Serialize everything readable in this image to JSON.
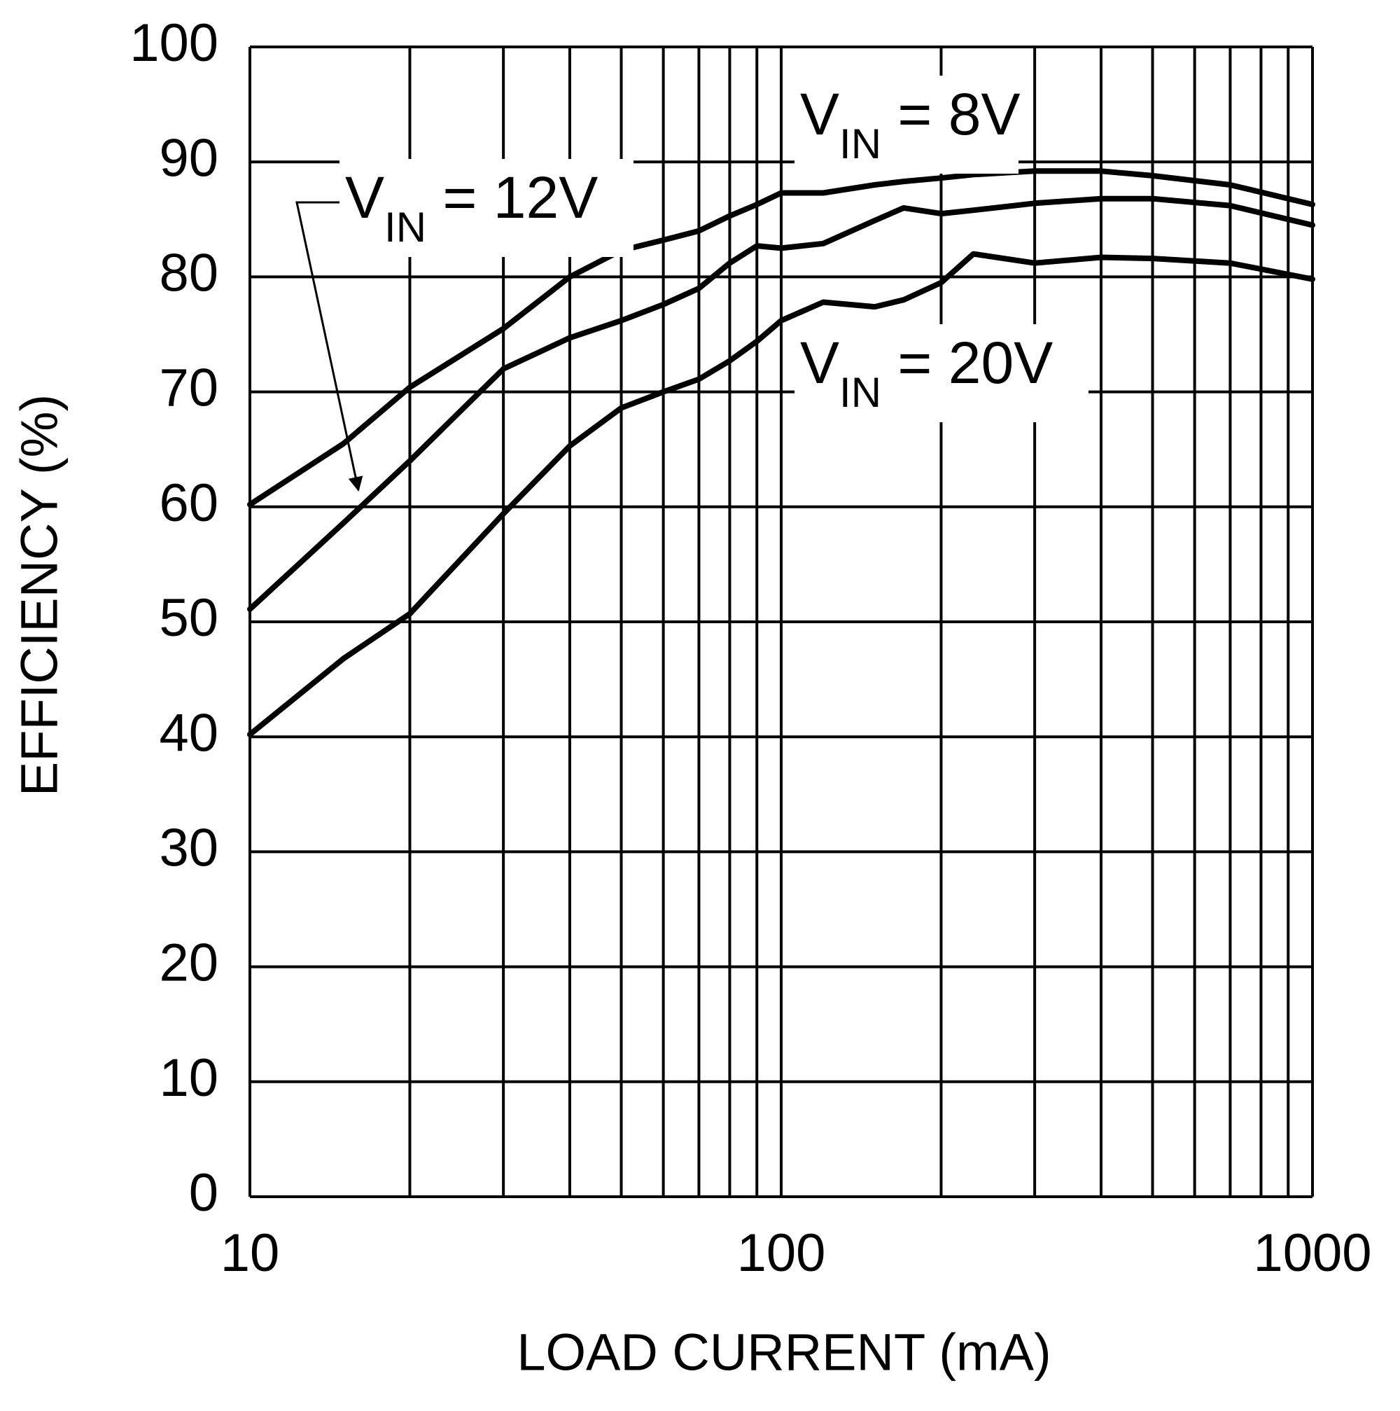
{
  "chart_data": {
    "type": "line",
    "x_label": "LOAD CURRENT (mA)",
    "y_label": "EFFICIENCY (%)",
    "xscale": "log",
    "grid": true,
    "color": "#000000",
    "xlim": [
      10,
      1000
    ],
    "xticks": [
      10,
      100,
      1000
    ],
    "xminor": [
      20,
      30,
      40,
      50,
      60,
      70,
      80,
      90,
      200,
      300,
      400,
      500,
      600,
      700,
      800,
      900
    ],
    "ylim": [
      0,
      100
    ],
    "yticks": [
      0,
      10,
      20,
      30,
      40,
      50,
      60,
      70,
      80,
      90,
      100
    ],
    "x": [
      10,
      15,
      20,
      30,
      40,
      50,
      60,
      70,
      80,
      90,
      100,
      120,
      150,
      170,
      200,
      230,
      300,
      400,
      500,
      700,
      1000
    ],
    "series": [
      {
        "name": "VIN = 8V",
        "values": [
          60.2,
          65.5,
          70.4,
          75.5,
          80,
          82.3,
          83.2,
          84,
          85.3,
          86.3,
          87.3,
          87.3,
          88,
          88.3,
          88.6,
          88.9,
          89.2,
          89.2,
          88.8,
          88,
          86.3
        ]
      },
      {
        "name": "VIN = 12V",
        "values": [
          51.1,
          58.6,
          64,
          72,
          74.7,
          76.2,
          77.6,
          79,
          81.2,
          82.7,
          82.5,
          82.9,
          84.9,
          86,
          85.5,
          85.8,
          86.4,
          86.8,
          86.8,
          86.2,
          84.5
        ]
      },
      {
        "name": "VIN = 20V",
        "values": [
          40.2,
          46.8,
          50.7,
          59.4,
          65.3,
          68.6,
          70,
          71.1,
          72.7,
          74.4,
          76.2,
          77.8,
          77.4,
          78,
          79.5,
          82,
          81.2,
          81.7,
          81.6,
          81.2,
          79.8
        ]
      }
    ]
  }
}
